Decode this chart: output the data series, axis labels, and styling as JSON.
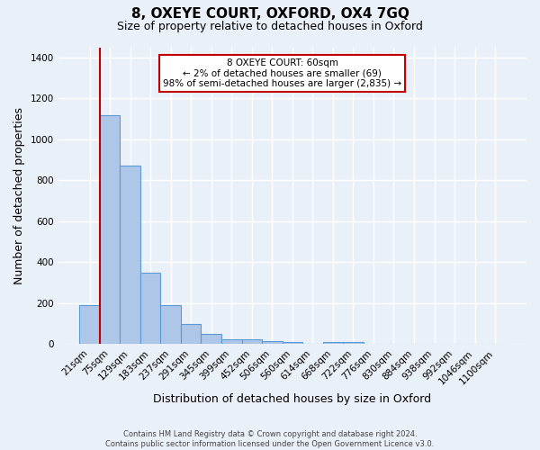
{
  "title": "8, OXEYE COURT, OXFORD, OX4 7GQ",
  "subtitle": "Size of property relative to detached houses in Oxford",
  "xlabel": "Distribution of detached houses by size in Oxford",
  "ylabel": "Number of detached properties",
  "categories": [
    "21sqm",
    "75sqm",
    "129sqm",
    "183sqm",
    "237sqm",
    "291sqm",
    "345sqm",
    "399sqm",
    "452sqm",
    "506sqm",
    "560sqm",
    "614sqm",
    "668sqm",
    "722sqm",
    "776sqm",
    "830sqm",
    "884sqm",
    "938sqm",
    "992sqm",
    "1046sqm",
    "1100sqm"
  ],
  "values": [
    190,
    1120,
    870,
    350,
    190,
    97,
    52,
    25,
    22,
    15,
    10,
    0,
    12,
    10,
    0,
    0,
    0,
    0,
    0,
    0,
    0
  ],
  "bar_color": "#aec6e8",
  "bar_edge_color": "#5b9bd5",
  "vline_color": "#c00000",
  "annotation_text": "8 OXEYE COURT: 60sqm\n← 2% of detached houses are smaller (69)\n98% of semi-detached houses are larger (2,835) →",
  "annotation_box_color": "white",
  "annotation_box_edge_color": "#c00000",
  "ylim": [
    0,
    1450
  ],
  "yticks": [
    0,
    200,
    400,
    600,
    800,
    1000,
    1200,
    1400
  ],
  "bg_color": "#eaf0f8",
  "plot_bg_color": "#eaf0f8",
  "footer": "Contains HM Land Registry data © Crown copyright and database right 2024.\nContains public sector information licensed under the Open Government Licence v3.0.",
  "grid_color": "white",
  "title_fontsize": 11,
  "subtitle_fontsize": 9,
  "tick_fontsize": 7.5,
  "label_fontsize": 9,
  "footer_fontsize": 6,
  "annotation_fontsize": 7.5
}
